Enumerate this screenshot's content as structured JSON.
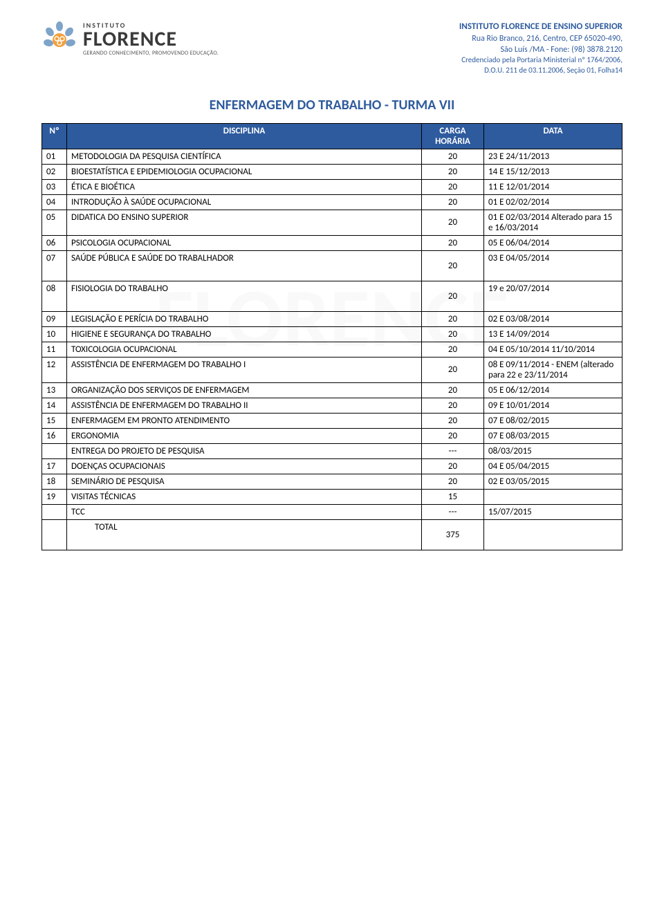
{
  "header": {
    "logo": {
      "instituto": "INSTITUTO",
      "florence": "FLORENCE",
      "tagline": "GERANDO CONHECIMENTO, PROMOVENDO EDUCAÇÃO.",
      "icon_color_primary": "#7fa4c9",
      "icon_color_accent": "#f2a03d"
    },
    "right": {
      "title": "INSTITUTO FLORENCE DE ENSINO SUPERIOR",
      "address1": "Rua Rio Branco, 216, Centro, CEP 65020-490,",
      "address2": "São Luís /MA - Fone: (98) 3878.2120",
      "cred1": "Credenciado pela Portaria Ministerial nº 1764/2006,",
      "cred2": "D.O.U. 211 de 03.11.2006, Seção 01, Folha14"
    }
  },
  "title": "ENFERMAGEM DO TRABALHO - TURMA VII",
  "columns": {
    "n": "Nº",
    "disciplina": "DISCIPLINA",
    "carga": "CARGA HORÁRIA",
    "data": "DATA"
  },
  "rows": [
    {
      "n": "01",
      "d": "METODOLOGIA DA PESQUISA CIENTÍFICA",
      "c": "20",
      "dt": "23 E 24/11/2013"
    },
    {
      "n": "02",
      "d": "BIOESTATÍSTICA E EPIDEMIOLOGIA OCUPACIONAL",
      "c": "20",
      "dt": "14 E 15/12/2013"
    },
    {
      "n": "03",
      "d": "ÉTICA E BIOÉTICA",
      "c": "20",
      "dt": "11 E 12/01/2014"
    },
    {
      "n": "04",
      "d": "INTRODUÇÃO À SAÚDE OCUPACIONAL",
      "c": "20",
      "dt": "01 E 02/02/2014"
    },
    {
      "n": "05",
      "d": "DIDATICA DO ENSINO SUPERIOR",
      "c": "20",
      "dt": "01 E 02/03/2014 Alterado para 15 e 16/03/2014"
    },
    {
      "n": "06",
      "d": "PSICOLOGIA OCUPACIONAL",
      "c": "20",
      "dt": "05 E 06/04/2014"
    },
    {
      "n": "07",
      "d": "SAÚDE PÚBLICA E SAÚDE DO TRABALHADOR",
      "c": "20",
      "dt": "03 E 04/05/2014",
      "tall": true
    },
    {
      "n": "08",
      "d": "FISIOLOGIA DO TRABALHO",
      "c": "20",
      "dt": "19 e 20/07/2014",
      "tall": true
    },
    {
      "n": "09",
      "d": "LEGISLAÇÃO E PERÍCIA DO TRABALHO",
      "c": "20",
      "dt": "02 E 03/08/2014"
    },
    {
      "n": "10",
      "d": "HIGIENE E SEGURANÇA DO TRABALHO",
      "c": "20",
      "dt": "13 E 14/09/2014"
    },
    {
      "n": "11",
      "d": "TOXICOLOGIA OCUPACIONAL",
      "c": "20",
      "dt": "04 E 05/10/2014 11/10/2014"
    },
    {
      "n": "12",
      "d": "ASSISTÊNCIA DE ENFERMAGEM DO TRABALHO I",
      "c": "20",
      "dt": "08 E 09/11/2014 - ENEM (alterado para 22 e 23/11/2014",
      "just": true
    },
    {
      "n": "13",
      "d": "ORGANIZAÇÃO DOS SERVIÇOS DE ENFERMAGEM",
      "c": "20",
      "dt": "05 E 06/12/2014"
    },
    {
      "n": "14",
      "d": "ASSISTÊNCIA DE ENFERMAGEM DO TRABALHO II",
      "c": "20",
      "dt": "09 E 10/01/2014"
    },
    {
      "n": "15",
      "d": "ENFERMAGEM EM PRONTO ATENDIMENTO",
      "c": "20",
      "dt": "07 E 08/02/2015"
    },
    {
      "n": "16",
      "d": "ERGONOMIA",
      "c": "20",
      "dt": "07 E 08/03/2015"
    },
    {
      "n": "",
      "d": "ENTREGA DO PROJETO DE PESQUISA",
      "c": "---",
      "dt": "08/03/2015"
    },
    {
      "n": "17",
      "d": "DOENÇAS OCUPACIONAIS",
      "c": "20",
      "dt": "04 E 05/04/2015"
    },
    {
      "n": "18",
      "d": "SEMINÁRIO DE PESQUISA",
      "c": "20",
      "dt": "02 E 03/05/2015"
    },
    {
      "n": "19",
      "d": "VISITAS TÉCNICAS",
      "c": "15",
      "dt": ""
    },
    {
      "n": "",
      "d": "TCC",
      "c": "---",
      "dt": "15/07/2015"
    },
    {
      "n": "",
      "d": "TOTAL",
      "c": "375",
      "dt": "",
      "indent": true,
      "tall": true
    }
  ],
  "groups": [
    [
      0,
      1
    ],
    [
      2,
      6
    ],
    [
      7
    ],
    [
      8,
      12
    ],
    [
      13
    ],
    [
      14
    ],
    [
      15
    ],
    [
      16
    ],
    [
      17
    ],
    [
      18
    ],
    [
      19
    ],
    [
      20
    ],
    [
      21
    ]
  ],
  "colors": {
    "brand_blue": "#2e5b9e",
    "text": "#000000",
    "background": "#ffffff"
  }
}
